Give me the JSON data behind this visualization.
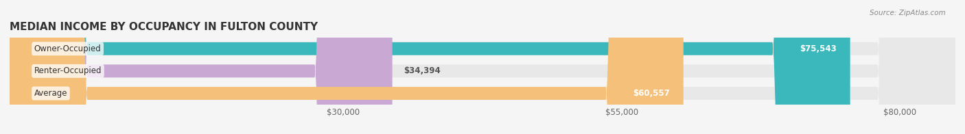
{
  "title": "MEDIAN INCOME BY OCCUPANCY IN FULTON COUNTY",
  "source": "Source: ZipAtlas.com",
  "categories": [
    "Owner-Occupied",
    "Renter-Occupied",
    "Average"
  ],
  "values": [
    75543,
    34394,
    60557
  ],
  "bar_colors": [
    "#3ab8bc",
    "#c9a8d4",
    "#f5c07a"
  ],
  "bar_bg_color": "#e8e8e8",
  "labels": [
    "$75,543",
    "$34,394",
    "$60,557"
  ],
  "label_inside": [
    true,
    false,
    true
  ],
  "x_ticks": [
    30000,
    55000,
    80000
  ],
  "x_tick_labels": [
    "$30,000",
    "$55,000",
    "$80,000"
  ],
  "xmin": 0,
  "xmax": 85000,
  "background_color": "#f5f5f5",
  "title_fontsize": 11,
  "bar_height": 0.58
}
